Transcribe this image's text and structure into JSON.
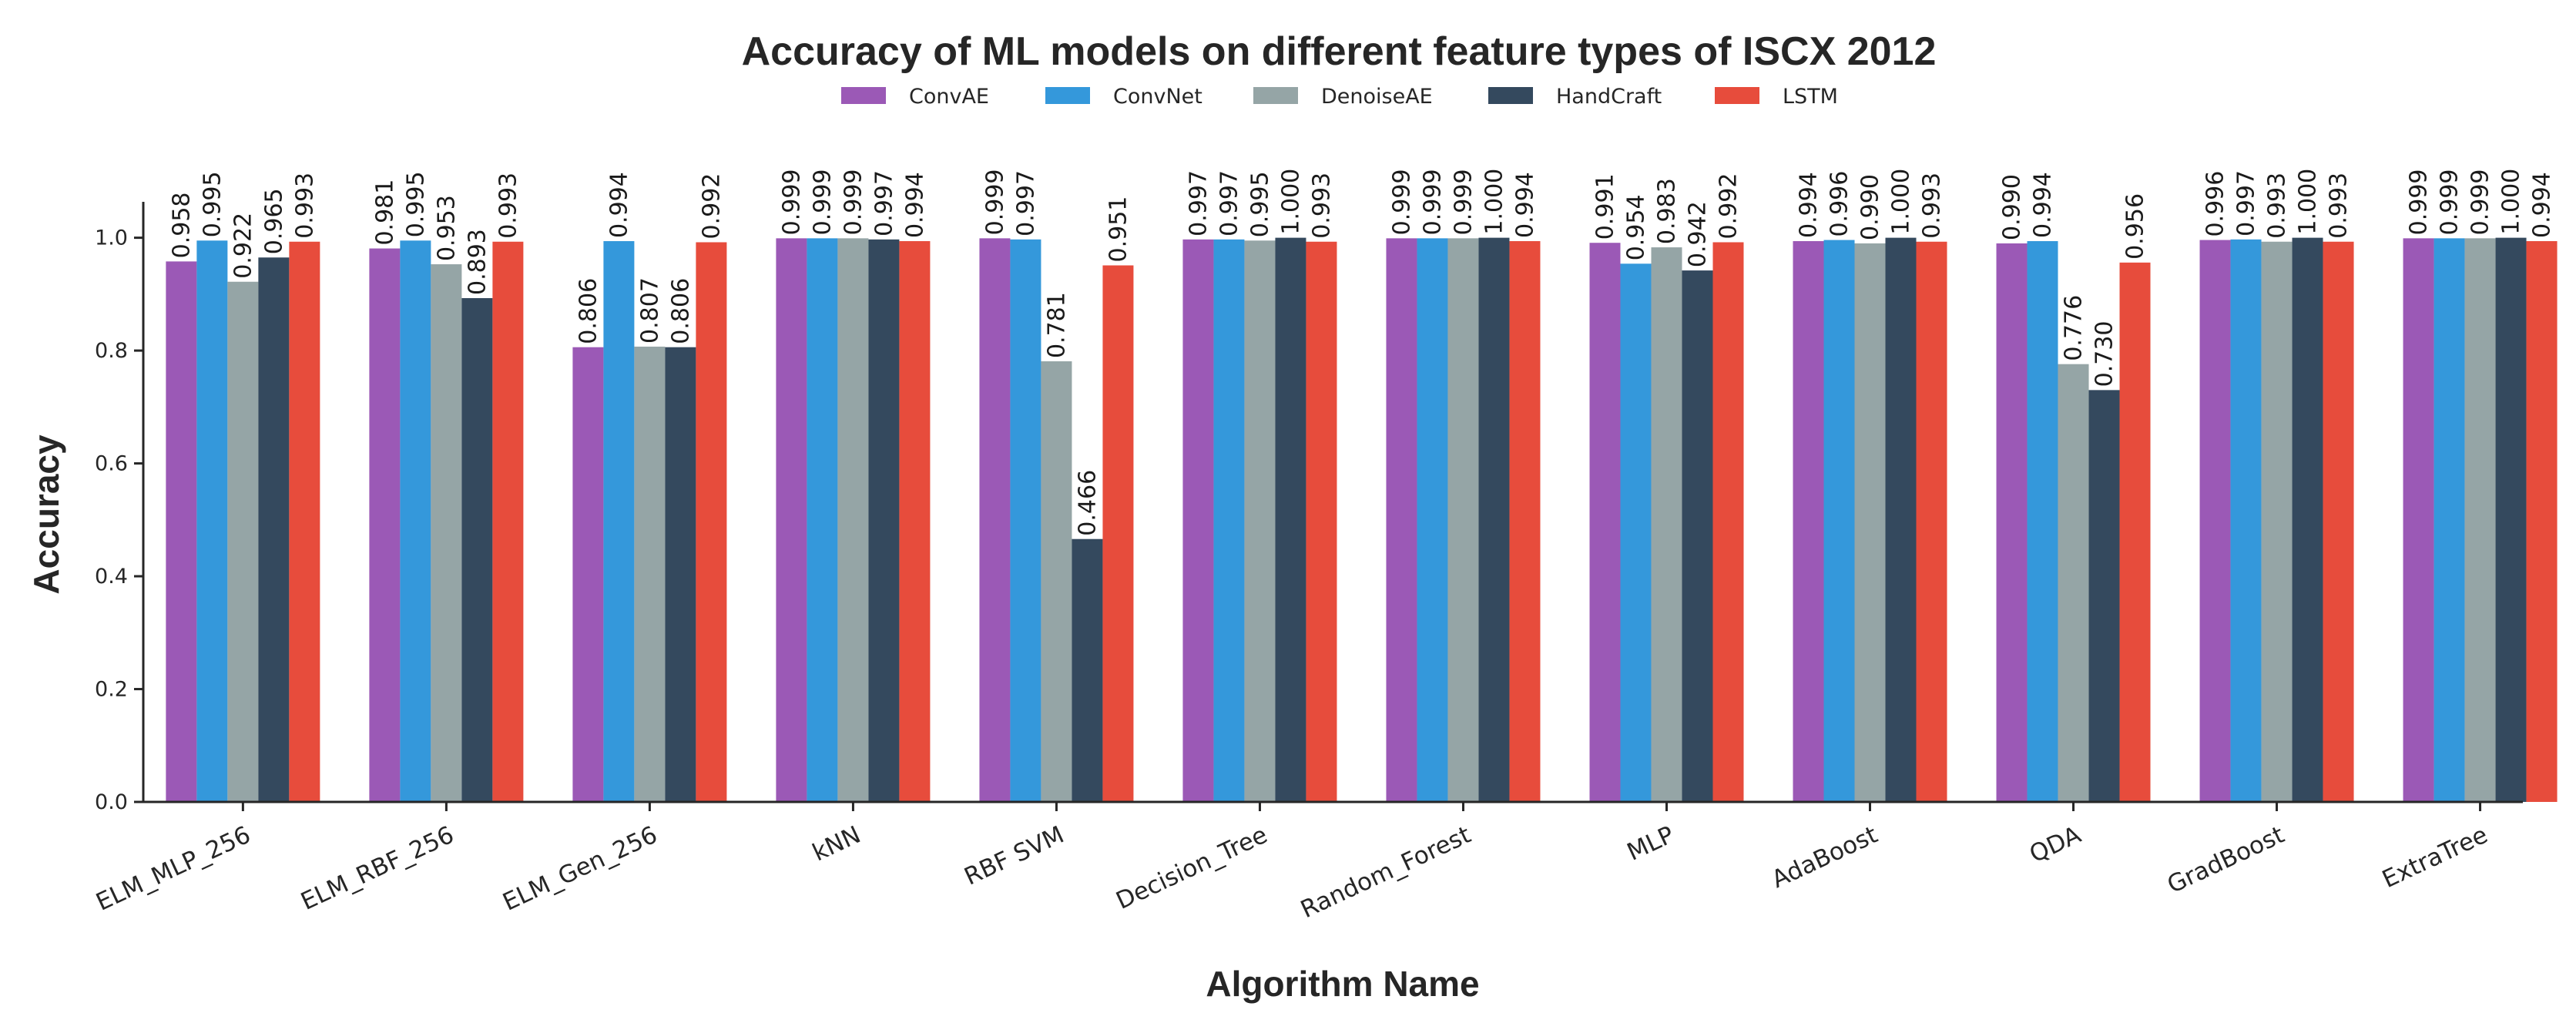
{
  "chart_data": {
    "type": "bar",
    "title": "Accuracy of ML models on different feature types of ISCX 2012",
    "xlabel": "Algorithm Name",
    "ylabel": "Accuracy",
    "ylim": [
      0,
      1.05
    ],
    "yticks": [
      "0.0",
      "0.2",
      "0.4",
      "0.6",
      "0.8",
      "1.0"
    ],
    "grid": false,
    "legend_position": "top-center",
    "categories": [
      "ELM_MLP_256",
      "ELM_RBF_256",
      "ELM_Gen_256",
      "kNN",
      "RBF SVM",
      "Decision_Tree",
      "Random_Forest",
      "MLP",
      "AdaBoost",
      "QDA",
      "GradBoost",
      "ExtraTree"
    ],
    "series": [
      {
        "name": "ConvAE",
        "color": "#9b59b6",
        "values": [
          0.958,
          0.981,
          0.806,
          0.999,
          0.999,
          0.997,
          0.999,
          0.991,
          0.994,
          0.99,
          0.996,
          0.999
        ],
        "labels": [
          "0.958",
          "0.981",
          "0.806",
          "0.999",
          "0.999",
          "0.997",
          "0.999",
          "0.991",
          "0.994",
          "0.990",
          "0.996",
          "0.999"
        ]
      },
      {
        "name": "ConvNet",
        "color": "#3498db",
        "values": [
          0.995,
          0.995,
          0.994,
          0.999,
          0.997,
          0.997,
          0.999,
          0.954,
          0.996,
          0.994,
          0.997,
          0.999
        ],
        "labels": [
          "0.995",
          "0.995",
          "0.994",
          "0.999",
          "0.997",
          "0.997",
          "0.999",
          "0.954",
          "0.996",
          "0.994",
          "0.997",
          "0.999"
        ]
      },
      {
        "name": "DenoiseAE",
        "color": "#95a5a6",
        "values": [
          0.922,
          0.953,
          0.807,
          0.999,
          0.781,
          0.995,
          0.999,
          0.983,
          0.99,
          0.776,
          0.993,
          0.999
        ],
        "labels": [
          "0.922",
          "0.953",
          "0.807",
          "0.999",
          "0.781",
          "0.995",
          "0.999",
          "0.983",
          "0.990",
          "0.776",
          "0.993",
          "0.999"
        ]
      },
      {
        "name": "HandCraft",
        "color": "#34495e",
        "values": [
          0.965,
          0.893,
          0.806,
          0.997,
          0.466,
          1.0,
          1.0,
          0.942,
          1.0,
          0.73,
          1.0,
          1.0
        ],
        "labels": [
          "0.965",
          "0.893",
          "0.806",
          "0.997",
          "0.466",
          "1.000",
          "1.000",
          "0.942",
          "1.000",
          "0.730",
          "1.000",
          "1.000"
        ]
      },
      {
        "name": "LSTM",
        "color": "#e74c3c",
        "values": [
          0.993,
          0.993,
          0.992,
          0.994,
          0.951,
          0.993,
          0.994,
          0.992,
          0.993,
          0.956,
          0.993,
          0.994
        ],
        "labels": [
          "0.993",
          "0.993",
          "0.992",
          "0.994",
          "0.951",
          "0.993",
          "0.994",
          "0.992",
          "0.993",
          "0.956",
          "0.993",
          "0.994"
        ]
      }
    ]
  }
}
